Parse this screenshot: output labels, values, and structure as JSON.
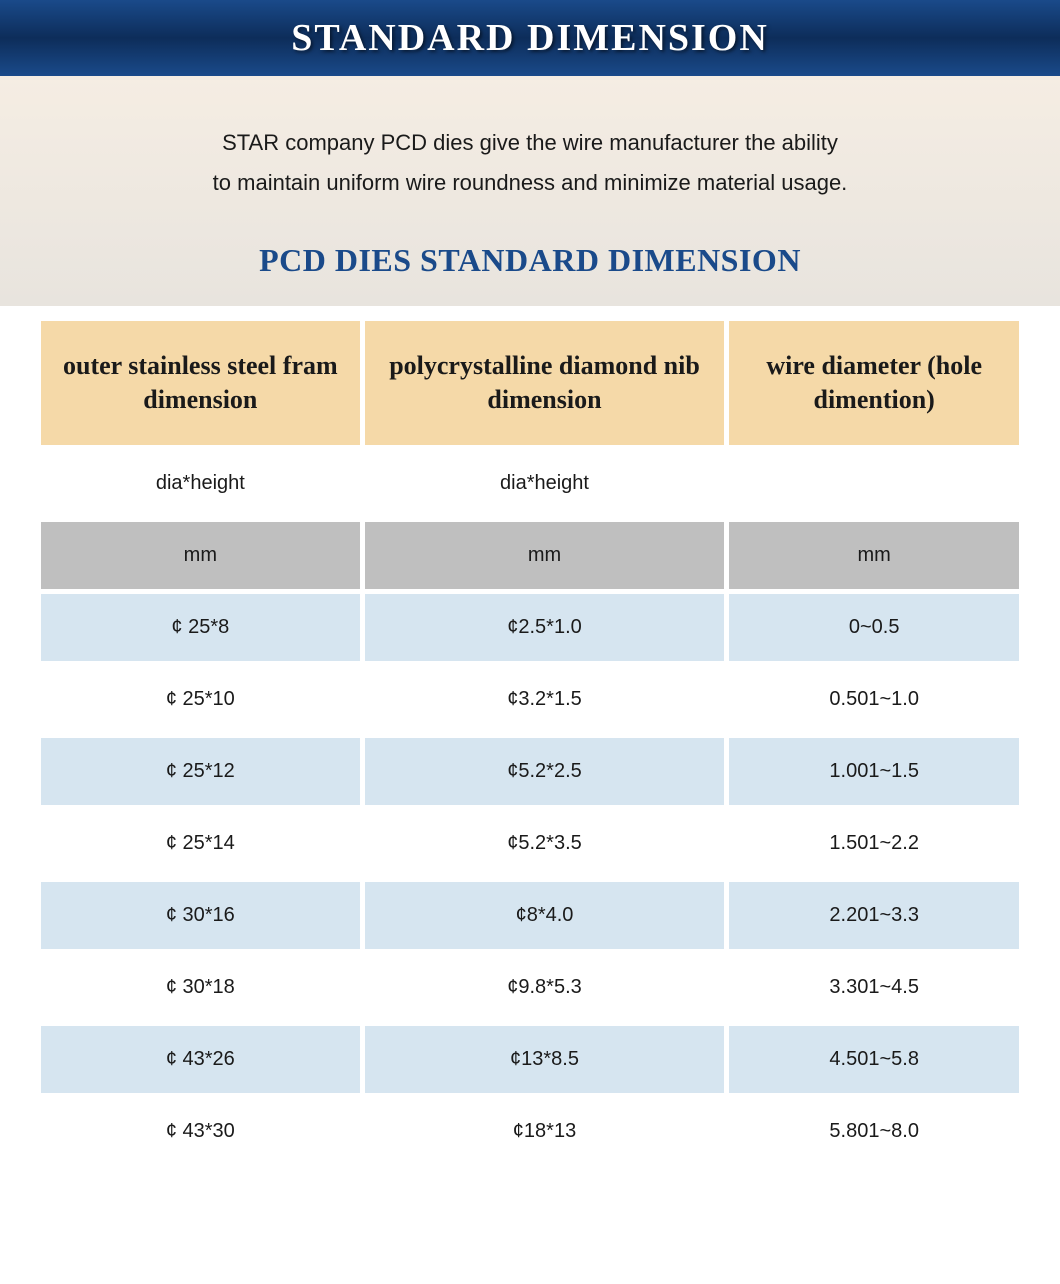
{
  "banner": {
    "title": "STANDARD DIMENSION"
  },
  "intro": {
    "line1": "STAR company PCD dies give the wire manufacturer the ability",
    "line2": "to maintain uniform wire roundness and minimize material usage."
  },
  "subtitle": "PCD DIES STANDARD DIMENSION",
  "table": {
    "headers": {
      "col1": "outer stainless steel fram dimension",
      "col2": "polycrystalline diamond nib dimension",
      "col3": "wire diameter (hole dimention)"
    },
    "subhead": {
      "col1": "dia*height",
      "col2": "dia*height",
      "col3": ""
    },
    "units": {
      "col1": "mm",
      "col2": "mm",
      "col3": "mm"
    },
    "rows": [
      {
        "c1": "¢ 25*8",
        "c2": "¢2.5*1.0",
        "c3": "0~0.5"
      },
      {
        "c1": "¢ 25*10",
        "c2": "¢3.2*1.5",
        "c3": "0.501~1.0"
      },
      {
        "c1": "¢ 25*12",
        "c2": "¢5.2*2.5",
        "c3": "1.001~1.5"
      },
      {
        "c1": "¢ 25*14",
        "c2": "¢5.2*3.5",
        "c3": "1.501~2.2"
      },
      {
        "c1": "¢ 30*16",
        "c2": "¢8*4.0",
        "c3": "2.201~3.3"
      },
      {
        "c1": "¢ 30*18",
        "c2": "¢9.8*5.3",
        "c3": "3.301~4.5"
      },
      {
        "c1": "¢ 43*26",
        "c2": "¢13*8.5",
        "c3": "4.501~5.8"
      },
      {
        "c1": "¢ 43*30",
        "c2": "¢18*13",
        "c3": "5.801~8.0"
      }
    ],
    "colors": {
      "header_bg": "#f5d9a8",
      "unit_bg": "#bfbfbf",
      "row_blue_bg": "#d6e5f0",
      "row_white_bg": "#ffffff",
      "banner_bg": "#0d2d5a",
      "accent_text": "#1a4a8a"
    }
  }
}
